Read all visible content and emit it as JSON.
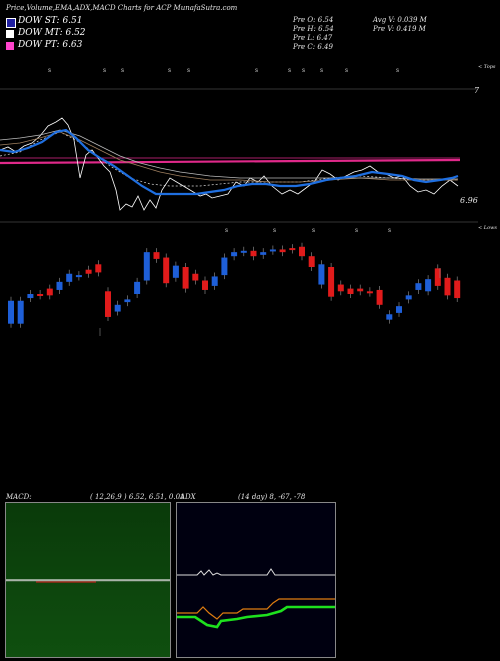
{
  "header": {
    "title": "Price,Volume,EMA,ADX,MACD Charts for ACP MunafaSutra.com",
    "quote": {
      "open": "Pre  O: 6.54",
      "high": "Pre  H: 6.54",
      "low": "Pre  L: 6.47",
      "close": "Pre  C: 6.49",
      "avg_volume": "Avg V: 0.039 M",
      "prev_volume": "Pre  V: 0.419 M"
    }
  },
  "legend": [
    {
      "label": "DOW ST: 6.51",
      "color": "#1f1fa0"
    },
    {
      "label": "DOW MT: 6.52",
      "color": "#ffffff"
    },
    {
      "label": "DOW PT: 6.63",
      "color": "#ff44cc"
    }
  ],
  "labels": {
    "tops": "< Tops",
    "lows": "< Lows",
    "price_high": "7",
    "price_low": "6.96"
  },
  "colors": {
    "up": "#1e5fd8",
    "down": "#e11b1b",
    "pink_line": "#e0298a",
    "ema_blue": "#1f6fe0",
    "macd_bg": "#0a3d0a",
    "adx_bg": "#000010",
    "adx_green": "#1ee11e",
    "adx_orange": "#e07d10"
  },
  "macd_panel": {
    "label": "MACD:",
    "params": "( 12,26,9 ) 6.52, 6.51, 0.01"
  },
  "adx_panel": {
    "label": "ADX",
    "params": "(14  day) 8, -67, -78"
  },
  "chart_data": {
    "type": "candlestick",
    "candles": [
      {
        "o": 0.38,
        "c": 0.55,
        "dir": "up"
      },
      {
        "o": 0.38,
        "c": 0.55,
        "dir": "up"
      },
      {
        "o": 0.57,
        "c": 0.6,
        "dir": "up"
      },
      {
        "o": 0.59,
        "c": 0.6,
        "dir": "down"
      },
      {
        "o": 0.64,
        "c": 0.59,
        "dir": "down"
      },
      {
        "o": 0.63,
        "c": 0.69,
        "dir": "up"
      },
      {
        "o": 0.69,
        "c": 0.75,
        "dir": "up"
      },
      {
        "o": 0.74,
        "c": 0.73,
        "dir": "up"
      },
      {
        "o": 0.78,
        "c": 0.75,
        "dir": "down"
      },
      {
        "o": 0.82,
        "c": 0.76,
        "dir": "down"
      },
      {
        "o": 0.62,
        "c": 0.43,
        "dir": "down"
      },
      {
        "o": 0.47,
        "c": 0.52,
        "dir": "up"
      },
      {
        "o": 0.54,
        "c": 0.56,
        "dir": "up"
      },
      {
        "o": 0.6,
        "c": 0.69,
        "dir": "up"
      },
      {
        "o": 0.7,
        "c": 0.91,
        "dir": "up"
      },
      {
        "o": 0.91,
        "c": 0.86,
        "dir": "down"
      },
      {
        "o": 0.87,
        "c": 0.68,
        "dir": "down"
      },
      {
        "o": 0.72,
        "c": 0.81,
        "dir": "up"
      },
      {
        "o": 0.8,
        "c": 0.64,
        "dir": "down"
      },
      {
        "o": 0.75,
        "c": 0.7,
        "dir": "down"
      },
      {
        "o": 0.7,
        "c": 0.63,
        "dir": "down"
      },
      {
        "o": 0.66,
        "c": 0.73,
        "dir": "up"
      },
      {
        "o": 0.74,
        "c": 0.87,
        "dir": "up"
      },
      {
        "o": 0.88,
        "c": 0.91,
        "dir": "up"
      },
      {
        "o": 0.91,
        "c": 0.92,
        "dir": "up"
      },
      {
        "o": 0.92,
        "c": 0.88,
        "dir": "down"
      },
      {
        "o": 0.89,
        "c": 0.91,
        "dir": "up"
      },
      {
        "o": 0.92,
        "c": 0.93,
        "dir": "up"
      },
      {
        "o": 0.93,
        "c": 0.91,
        "dir": "down"
      },
      {
        "o": 0.94,
        "c": 0.93,
        "dir": "down"
      },
      {
        "o": 0.95,
        "c": 0.88,
        "dir": "down"
      },
      {
        "o": 0.88,
        "c": 0.8,
        "dir": "down"
      },
      {
        "o": 0.82,
        "c": 0.67,
        "dir": "up"
      },
      {
        "o": 0.8,
        "c": 0.58,
        "dir": "down"
      },
      {
        "o": 0.67,
        "c": 0.62,
        "dir": "down"
      },
      {
        "o": 0.64,
        "c": 0.6,
        "dir": "down"
      },
      {
        "o": 0.64,
        "c": 0.62,
        "dir": "down"
      },
      {
        "o": 0.62,
        "c": 0.61,
        "dir": "down"
      },
      {
        "o": 0.63,
        "c": 0.52,
        "dir": "down"
      },
      {
        "o": 0.45,
        "c": 0.41,
        "dir": "up"
      },
      {
        "o": 0.51,
        "c": 0.46,
        "dir": "up"
      },
      {
        "o": 0.56,
        "c": 0.59,
        "dir": "up"
      },
      {
        "o": 0.63,
        "c": 0.68,
        "dir": "up"
      },
      {
        "o": 0.62,
        "c": 0.71,
        "dir": "up"
      },
      {
        "o": 0.79,
        "c": 0.66,
        "dir": "down"
      },
      {
        "o": 0.72,
        "c": 0.59,
        "dir": "down"
      },
      {
        "o": 0.7,
        "c": 0.57,
        "dir": "down"
      }
    ]
  }
}
